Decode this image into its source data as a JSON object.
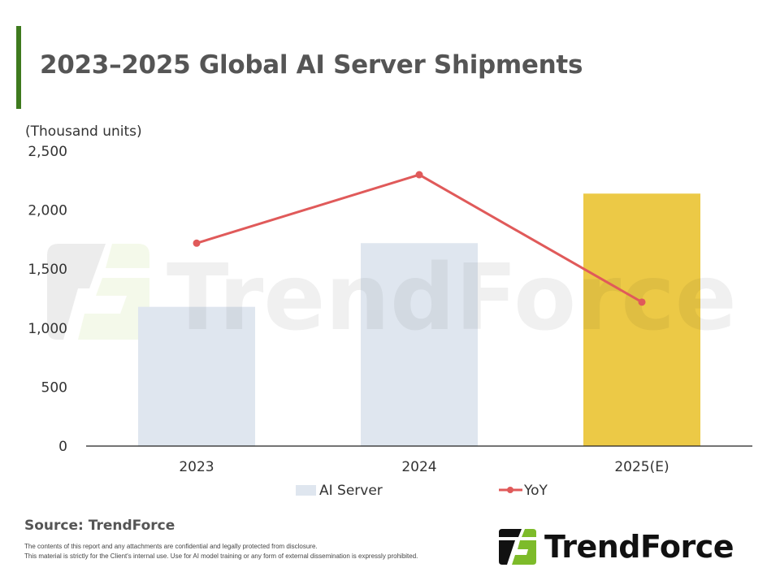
{
  "header": {
    "title": "2023–2025 Global AI Server Shipments",
    "accent_color": "#3e7a1e"
  },
  "chart_data": {
    "type": "bar",
    "title": "2023–2025 Global AI Server Shipments",
    "ylabel": "(Thousand units)",
    "xlabel": "",
    "ylim": [
      0,
      2500
    ],
    "yticks": [
      0,
      500,
      1000,
      1500,
      2000,
      2500
    ],
    "ytick_labels": [
      "0",
      "500",
      "1,000",
      "1,500",
      "2,000",
      "2,500"
    ],
    "categories": [
      "2023",
      "2024",
      "2025(E)"
    ],
    "grid": false,
    "legend_position": "bottom",
    "series": [
      {
        "name": "AI Server",
        "type": "bar",
        "values": [
          1180,
          1720,
          2140
        ],
        "colors": [
          "#dfe6ef",
          "#dfe6ef",
          "#ecc946"
        ]
      },
      {
        "name": "YoY",
        "type": "line",
        "color": "#e05a5a",
        "note": "secondary axis not shown; values expressed in primary-axis-equivalent units",
        "values": [
          1720,
          2300,
          1220
        ]
      }
    ]
  },
  "legend": {
    "items": [
      {
        "label": "AI Server",
        "kind": "bar",
        "color": "#dfe6ef"
      },
      {
        "label": "YoY",
        "kind": "line",
        "color": "#e05a5a"
      }
    ]
  },
  "watermark": {
    "text": "TrendForce"
  },
  "footer": {
    "source": "Source: TrendForce",
    "disclaimer_line1": "The contents of this report and any attachments are confidential and legally protected from disclosure.",
    "disclaimer_line2": "This material is strictly for the Client's internal use. Use for AI model training or any form of external dissemination is expressly prohibited.",
    "logo_text": "TrendForce",
    "logo_colors": {
      "dark": "#111111",
      "green": "#7dbb2a"
    }
  }
}
